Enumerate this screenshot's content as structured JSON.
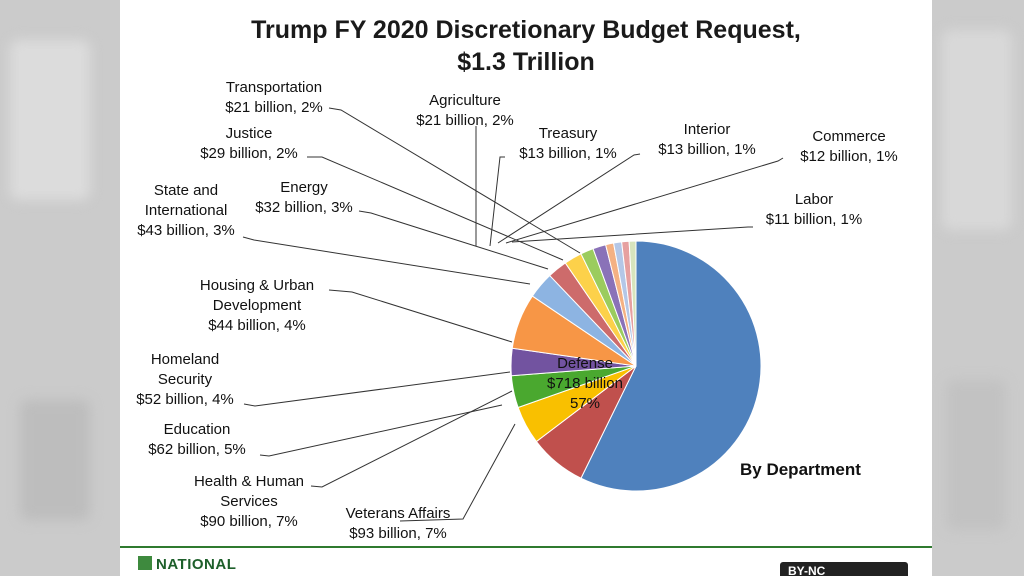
{
  "chart_data": {
    "type": "pie",
    "title_line1": "Trump FY 2020 Discretionary  Budget Request,",
    "title_line2": "$1.3 Trillion",
    "subtitle": "By Department",
    "unit": "billion USD",
    "slices": [
      {
        "name": "Defense",
        "value": 718,
        "percent": 57,
        "color": "#4f81bd",
        "label_lines": [
          "Defense",
          "$718 billion",
          "57%"
        ]
      },
      {
        "name": "Veterans Affairs",
        "value": 93,
        "percent": 7,
        "color": "#c0504d",
        "label_lines": [
          "Veterans Affairs",
          "$93 billion, 7%"
        ]
      },
      {
        "name": "Education",
        "value": 62,
        "percent": 5,
        "color": "#f9c000",
        "label_lines": [
          "Education",
          "$62 billion, 5%"
        ]
      },
      {
        "name": "Homeland Security",
        "value": 52,
        "percent": 4,
        "color": "#4aa82f",
        "label_lines": [
          "Homeland",
          "Security",
          "$52 billion, 4%"
        ]
      },
      {
        "name": "Housing & Urban Development",
        "value": 44,
        "percent": 4,
        "color": "#7253a0",
        "label_lines": [
          "Housing & Urban",
          "Development",
          "$44 billion, 4%"
        ]
      },
      {
        "name": "Health & Human Services",
        "value": 90,
        "percent": 7,
        "color": "#f79646",
        "label_lines": [
          "Health & Human",
          "Services",
          "$90 billion, 7%"
        ]
      },
      {
        "name": "State and International",
        "value": 43,
        "percent": 3,
        "color": "#8db4e2",
        "label_lines": [
          "State and",
          "International",
          "$43 billion, 3%"
        ]
      },
      {
        "name": "Energy",
        "value": 32,
        "percent": 3,
        "color": "#cd6b6b",
        "label_lines": [
          "Energy",
          "$32 billion, 3%"
        ]
      },
      {
        "name": "Justice",
        "value": 29,
        "percent": 2,
        "color": "#fcd14a",
        "label_lines": [
          "Justice",
          "$29 billion, 2%"
        ]
      },
      {
        "name": "Transportation",
        "value": 21,
        "percent": 2,
        "color": "#9bcc5e",
        "label_lines": [
          "Transportation",
          "$21 billion, 2%"
        ]
      },
      {
        "name": "Agriculture",
        "value": 21,
        "percent": 2,
        "color": "#8a72b8",
        "label_lines": [
          "Agriculture",
          "$21 billion, 2%"
        ]
      },
      {
        "name": "Treasury",
        "value": 13,
        "percent": 1,
        "color": "#f4b183",
        "label_lines": [
          "Treasury",
          "$13 billion, 1%"
        ]
      },
      {
        "name": "Interior",
        "value": 13,
        "percent": 1,
        "color": "#b4c7e7",
        "label_lines": [
          "Interior",
          "$13 billion, 1%"
        ]
      },
      {
        "name": "Commerce",
        "value": 12,
        "percent": 1,
        "color": "#e6a0a0",
        "label_lines": [
          "Commerce",
          "$12 billion, 1%"
        ]
      },
      {
        "name": "Labor",
        "value": 11,
        "percent": 1,
        "color": "#d7e4bd",
        "label_lines": [
          "Labor",
          "$11 billion, 1%"
        ]
      }
    ]
  },
  "footer": {
    "logo_text": "NATIONAL",
    "license_text": "BY-NC"
  },
  "colors": {
    "footer_rule": "#2f7a2f",
    "leader_line": "#333333"
  }
}
